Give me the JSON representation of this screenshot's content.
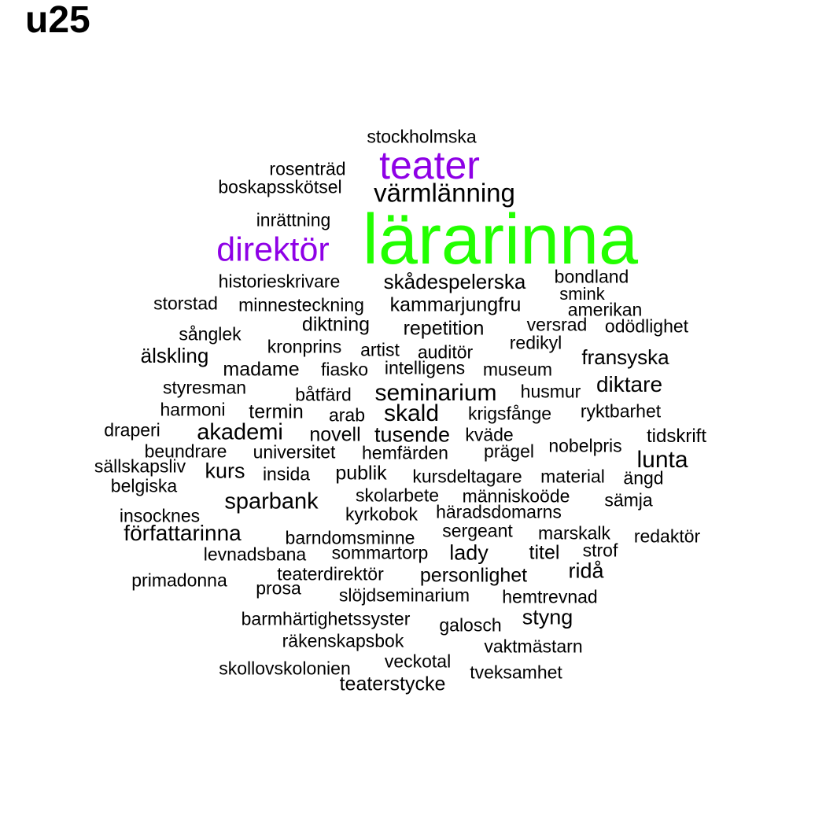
{
  "title": "u25",
  "colors": {
    "highlight_green": "#22ff00",
    "highlight_purple": "#8e00e6",
    "default": "#000000"
  },
  "words": [
    {
      "text": "stockholmska"
    },
    {
      "text": "teater",
      "color": "purple"
    },
    {
      "text": "rosenträd"
    },
    {
      "text": "boskapsskötsel"
    },
    {
      "text": "värmlänning"
    },
    {
      "text": "inrättning"
    },
    {
      "text": "lärarinna",
      "color": "green"
    },
    {
      "text": "direktör",
      "color": "purple"
    },
    {
      "text": "historieskrivare"
    },
    {
      "text": "skådespelerska"
    },
    {
      "text": "bondland"
    },
    {
      "text": "smink"
    },
    {
      "text": "storstad"
    },
    {
      "text": "minnesteckning"
    },
    {
      "text": "kammarjungfru"
    },
    {
      "text": "amerikan"
    },
    {
      "text": "diktning"
    },
    {
      "text": "repetition"
    },
    {
      "text": "versrad"
    },
    {
      "text": "odödlighet"
    },
    {
      "text": "sånglek"
    },
    {
      "text": "kronprins"
    },
    {
      "text": "artist"
    },
    {
      "text": "auditör"
    },
    {
      "text": "redikyl"
    },
    {
      "text": "älskling"
    },
    {
      "text": "fransyska"
    },
    {
      "text": "madame"
    },
    {
      "text": "fiasko"
    },
    {
      "text": "intelligens"
    },
    {
      "text": "museum"
    },
    {
      "text": "styresman"
    },
    {
      "text": "båtfärd"
    },
    {
      "text": "seminarium"
    },
    {
      "text": "husmur"
    },
    {
      "text": "diktare"
    },
    {
      "text": "harmoni"
    },
    {
      "text": "termin"
    },
    {
      "text": "arab"
    },
    {
      "text": "skald"
    },
    {
      "text": "krigsfånge"
    },
    {
      "text": "ryktbarhet"
    },
    {
      "text": "draperi"
    },
    {
      "text": "akademi"
    },
    {
      "text": "novell"
    },
    {
      "text": "tusende"
    },
    {
      "text": "kväde"
    },
    {
      "text": "tidskrift"
    },
    {
      "text": "beundrare"
    },
    {
      "text": "universitet"
    },
    {
      "text": "hemfärden"
    },
    {
      "text": "prägel"
    },
    {
      "text": "nobelpris"
    },
    {
      "text": "lunta"
    },
    {
      "text": "sällskapsliv"
    },
    {
      "text": "kurs"
    },
    {
      "text": "insida"
    },
    {
      "text": "publik"
    },
    {
      "text": "kursdeltagare"
    },
    {
      "text": "material"
    },
    {
      "text": "ängd"
    },
    {
      "text": "belgiska"
    },
    {
      "text": "sparbank"
    },
    {
      "text": "skolarbete"
    },
    {
      "text": "människoöde"
    },
    {
      "text": "sämja"
    },
    {
      "text": "insocknes"
    },
    {
      "text": "kyrkobok"
    },
    {
      "text": "häradsdomarns"
    },
    {
      "text": "författarinna"
    },
    {
      "text": "sergeant"
    },
    {
      "text": "marskalk"
    },
    {
      "text": "redaktör"
    },
    {
      "text": "barndomsminne"
    },
    {
      "text": "levnadsbana"
    },
    {
      "text": "sommartorp"
    },
    {
      "text": "lady"
    },
    {
      "text": "titel"
    },
    {
      "text": "strof"
    },
    {
      "text": "ridå"
    },
    {
      "text": "teaterdirektör"
    },
    {
      "text": "personlighet"
    },
    {
      "text": "primadonna"
    },
    {
      "text": "prosa"
    },
    {
      "text": "slöjdseminarium"
    },
    {
      "text": "hemtrevnad"
    },
    {
      "text": "barmhärtighetssyster"
    },
    {
      "text": "galosch"
    },
    {
      "text": "styng"
    },
    {
      "text": "räkenskapsbok"
    },
    {
      "text": "vaktmästarn"
    },
    {
      "text": "veckotal"
    },
    {
      "text": "skollovskolonien"
    },
    {
      "text": "tveksamhet"
    },
    {
      "text": "teaterstycke"
    }
  ]
}
